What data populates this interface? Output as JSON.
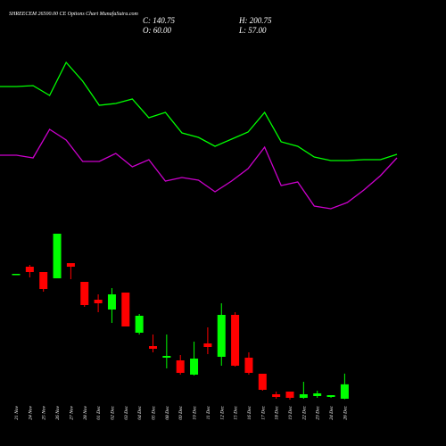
{
  "chart_data": [
    {
      "type": "candlestick",
      "title": "SHREECEM 26500.00 CE Options  Chart MunafaSutra.com",
      "ohlc_labels": [
        "C: 140.75",
        "H: 200.75",
        "O: 60.00",
        "L: 57.00"
      ],
      "categories": [
        "21 Nov",
        "24 Nov",
        "25 Nov",
        "26 Nov",
        "27 Nov",
        "28 Nov",
        "01 Dec",
        "02 Dec",
        "03 Dec",
        "04 Dec",
        "05 Dec",
        "08 Dec",
        "09 Dec",
        "10 Dec",
        "11 Dec",
        "12 Dec",
        "15 Dec",
        "16 Dec",
        "17 Dec",
        "18 Dec",
        "19 Dec",
        "22 Dec",
        "23 Dec",
        "24 Dec",
        "26 Dec"
      ],
      "open": [
        760,
        800,
        770,
        735,
        820,
        715,
        615,
        560,
        655,
        430,
        355,
        290,
        275,
        195,
        370,
        295,
        530,
        290,
        200,
        85,
        100,
        65,
        75,
        70,
        60
      ],
      "high": [
        760,
        810,
        770,
        985,
        820,
        715,
        645,
        680,
        655,
        535,
        420,
        420,
        305,
        380,
        460,
        595,
        545,
        320,
        200,
        100,
        100,
        155,
        105,
        80,
        200.75
      ],
      "low": [
        760,
        740,
        660,
        735,
        730,
        575,
        545,
        485,
        465,
        420,
        320,
        230,
        195,
        190,
        310,
        245,
        240,
        195,
        105,
        60,
        55,
        60,
        65,
        65,
        57
      ],
      "close": [
        760,
        770,
        675,
        985,
        800,
        585,
        595,
        645,
        465,
        525,
        340,
        300,
        205,
        285,
        350,
        530,
        245,
        205,
        110,
        70,
        65,
        85,
        90,
        80,
        140.75
      ],
      "up_color": "#00ff00",
      "down_color": "#ff0000",
      "ylim": [
        0,
        1100
      ]
    },
    {
      "type": "line",
      "series": [
        {
          "color": "#00ff00",
          "values": [
            76.5,
            76.5,
            77,
            71.5,
            90,
            79.5,
            66,
            67,
            69.5,
            59,
            62,
            50.5,
            48,
            43,
            47,
            51,
            62,
            45.5,
            43,
            37,
            35,
            35,
            35.5,
            35.5,
            38.5
          ]
        },
        {
          "color": "#cc00cc",
          "values": [
            38,
            38,
            36.5,
            52.5,
            46.5,
            34.5,
            34.5,
            39,
            31.5,
            35.5,
            23.5,
            25.5,
            24,
            17.5,
            23.5,
            30.5,
            42.5,
            21,
            23,
            9.5,
            8,
            11.5,
            18.5,
            26.5,
            36.5
          ]
        }
      ],
      "ylim": [
        0,
        100
      ]
    }
  ]
}
